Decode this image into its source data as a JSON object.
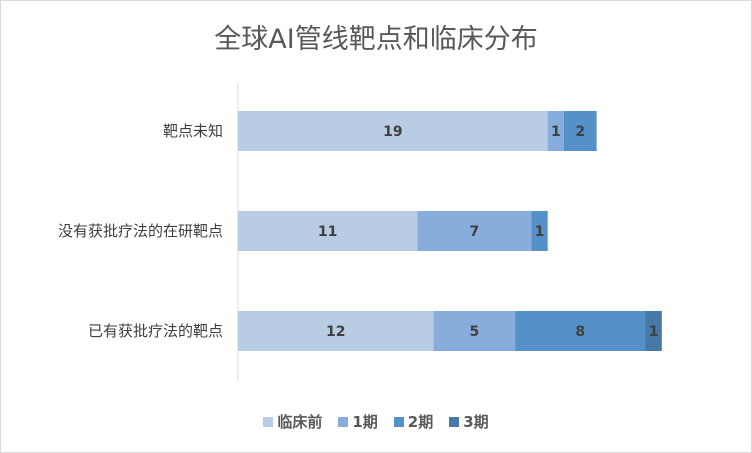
{
  "chart_data": {
    "type": "bar",
    "orientation": "horizontal",
    "stacked": true,
    "title": "全球AI管线靶点和临床分布",
    "categories": [
      "靶点未知",
      "没有获批疗法的在研靶点",
      "已有获批疗法的靶点"
    ],
    "series": [
      {
        "name": "临床前",
        "color": "#b8cce4",
        "values": [
          19,
          11,
          12
        ]
      },
      {
        "name": "1期",
        "color": "#88addc",
        "values": [
          1,
          7,
          5
        ]
      },
      {
        "name": "2期",
        "color": "#5591c8",
        "values": [
          2,
          1,
          8
        ]
      },
      {
        "name": "3期",
        "color": "#4678a8",
        "values": [
          0,
          0,
          1
        ]
      }
    ],
    "xlim": [
      0,
      31
    ],
    "grid": false,
    "legend": "bottom",
    "data_labels": true
  }
}
